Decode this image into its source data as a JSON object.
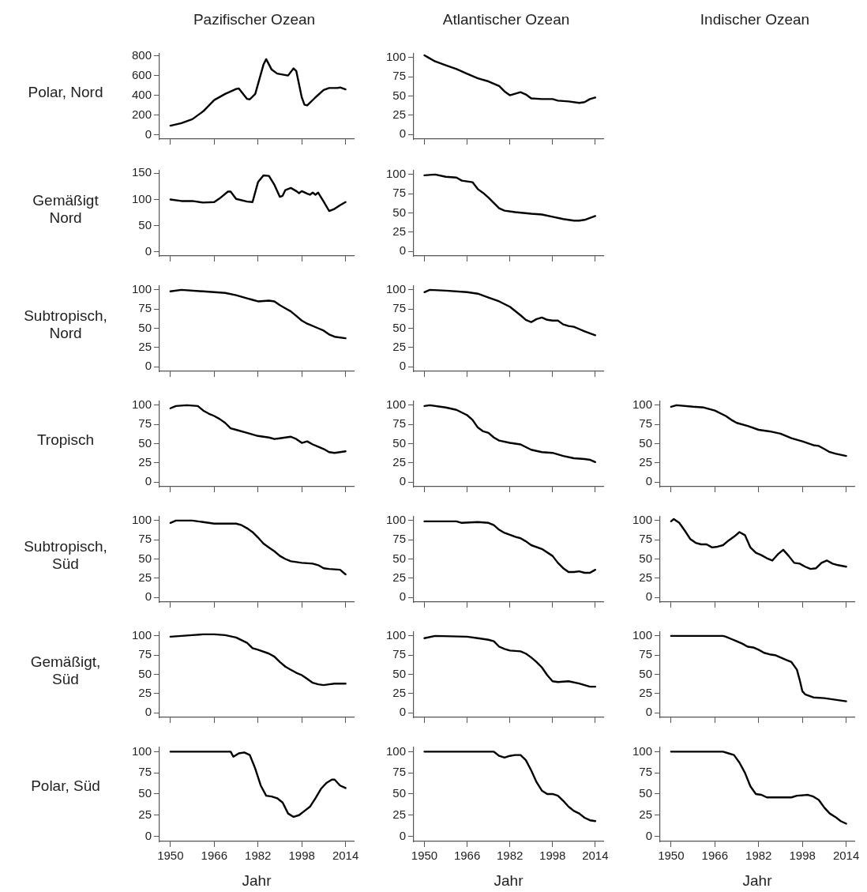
{
  "chart_data": [
    {
      "type": "line",
      "title": "Pazifischer Ozean",
      "ylabel": "Polar, Nord",
      "x": [
        1950,
        1954,
        1958,
        1962,
        1966,
        1970,
        1974,
        1975,
        1978,
        1979,
        1981,
        1984,
        1985,
        1987,
        1989,
        1993,
        1995,
        1996,
        1998,
        1999,
        2000,
        2003,
        2006,
        2008,
        2011,
        2012,
        2014
      ],
      "values": [
        95,
        120,
        160,
        240,
        353,
        415,
        465,
        470,
        365,
        360,
        415,
        710,
        765,
        660,
        620,
        600,
        672,
        645,
        380,
        305,
        300,
        380,
        455,
        475,
        475,
        480,
        460
      ],
      "color": "#000000",
      "xlim": [
        1946,
        2017
      ],
      "xticks": [
        1950,
        1966,
        1982,
        1998,
        2014
      ],
      "ylim": [
        -40,
        820
      ],
      "yticks": [
        0,
        200,
        400,
        600,
        800
      ],
      "grid": false,
      "marker": "none",
      "line_style": "solid",
      "tick_labels": "y"
    },
    {
      "type": "line",
      "title": "Atlantischer Ozean",
      "x": [
        1950,
        1952,
        1954,
        1958,
        1962,
        1966,
        1970,
        1974,
        1978,
        1980,
        1982,
        1984,
        1986,
        1988,
        1990,
        1994,
        1998,
        2000,
        2004,
        2008,
        2010,
        2012,
        2014
      ],
      "values": [
        103,
        99,
        95,
        90,
        85,
        79,
        73,
        69,
        63,
        56,
        51,
        53,
        55,
        52,
        47,
        46,
        46,
        44,
        43,
        41,
        42,
        46,
        48
      ],
      "color": "#000000",
      "xlim": [
        1946,
        2017
      ],
      "xticks": [
        1950,
        1966,
        1982,
        1998,
        2014
      ],
      "ylim": [
        -6,
        105
      ],
      "yticks": [
        0,
        25,
        50,
        75,
        100
      ],
      "grid": false,
      "marker": "none",
      "line_style": "solid",
      "tick_labels": "y"
    },
    {
      "type": "line",
      "ylabel": "Gemäßigt Nord",
      "x": [
        1950,
        1954,
        1958,
        1962,
        1966,
        1968,
        1971,
        1972,
        1974,
        1978,
        1980,
        1982,
        1984,
        1986,
        1988,
        1990,
        1991,
        1992,
        1994,
        1996,
        1997,
        1998,
        2000,
        2001,
        2002,
        2003,
        2004,
        2006,
        2008,
        2010,
        2012,
        2014
      ],
      "values": [
        100,
        97,
        97,
        94,
        95,
        102,
        115,
        115,
        101,
        96,
        95,
        133,
        146,
        145,
        128,
        105,
        107,
        118,
        122,
        116,
        112,
        116,
        111,
        109,
        113,
        109,
        113,
        96,
        78,
        82,
        89,
        95
      ],
      "color": "#000000",
      "xlim": [
        1946,
        2017
      ],
      "xticks": [
        1950,
        1966,
        1982,
        1998,
        2014
      ],
      "ylim": [
        -8,
        155
      ],
      "yticks": [
        0,
        50,
        100,
        150
      ],
      "grid": false,
      "marker": "none",
      "line_style": "solid",
      "tick_labels": "y"
    },
    {
      "type": "line",
      "x": [
        1950,
        1954,
        1958,
        1962,
        1964,
        1968,
        1970,
        1972,
        1974,
        1976,
        1978,
        1980,
        1984,
        1990,
        1994,
        1998,
        2002,
        2006,
        2008,
        2010,
        2014
      ],
      "values": [
        99,
        100,
        97,
        96,
        92,
        90,
        81,
        76,
        70,
        63,
        56,
        53,
        51,
        49,
        48,
        45,
        42,
        40,
        40,
        41,
        46
      ],
      "color": "#000000",
      "xlim": [
        1946,
        2017
      ],
      "xticks": [
        1950,
        1966,
        1982,
        1998,
        2014
      ],
      "ylim": [
        -6,
        105
      ],
      "yticks": [
        0,
        25,
        50,
        75,
        100
      ],
      "grid": false,
      "marker": "none",
      "line_style": "solid",
      "tick_labels": "y"
    },
    {
      "type": "line",
      "ylabel": "Subtropisch, Nord",
      "x": [
        1950,
        1954,
        1962,
        1966,
        1970,
        1974,
        1978,
        1980,
        1982,
        1986,
        1988,
        1990,
        1992,
        1994,
        1996,
        1998,
        2000,
        2004,
        2006,
        2008,
        2010,
        2014
      ],
      "values": [
        98,
        100,
        98,
        97,
        96,
        93,
        89,
        87,
        85,
        86,
        85,
        80,
        76,
        72,
        66,
        60,
        56,
        50,
        47,
        42,
        39,
        37
      ],
      "color": "#000000",
      "xlim": [
        1946,
        2017
      ],
      "xticks": [
        1950,
        1966,
        1982,
        1998,
        2014
      ],
      "ylim": [
        -6,
        105
      ],
      "yticks": [
        0,
        25,
        50,
        75,
        100
      ],
      "grid": false,
      "marker": "none",
      "line_style": "solid",
      "tick_labels": "y"
    },
    {
      "type": "line",
      "x": [
        1950,
        1952,
        1958,
        1966,
        1970,
        1974,
        1978,
        1982,
        1986,
        1988,
        1990,
        1992,
        1994,
        1996,
        1998,
        2000,
        2002,
        2004,
        2006,
        2008,
        2010,
        2014
      ],
      "values": [
        97,
        100,
        99,
        97,
        95,
        90,
        85,
        78,
        67,
        61,
        58,
        62,
        64,
        61,
        60,
        60,
        55,
        53,
        52,
        49,
        46,
        41
      ],
      "color": "#000000",
      "xlim": [
        1946,
        2017
      ],
      "xticks": [
        1950,
        1966,
        1982,
        1998,
        2014
      ],
      "ylim": [
        -6,
        105
      ],
      "yticks": [
        0,
        25,
        50,
        75,
        100
      ],
      "grid": false,
      "marker": "none",
      "line_style": "solid",
      "tick_labels": "y"
    },
    {
      "type": "line",
      "ylabel": "Tropisch",
      "x": [
        1950,
        1952,
        1956,
        1960,
        1962,
        1964,
        1966,
        1968,
        1970,
        1972,
        1974,
        1978,
        1982,
        1986,
        1988,
        1990,
        1994,
        1996,
        1998,
        2000,
        2002,
        2004,
        2006,
        2008,
        2010,
        2014
      ],
      "values": [
        96,
        99,
        100,
        99,
        93,
        89,
        86,
        82,
        77,
        70,
        68,
        64,
        60,
        58,
        56,
        57,
        59,
        56,
        51,
        53,
        49,
        46,
        43,
        39,
        38,
        40
      ],
      "color": "#000000",
      "xlim": [
        1946,
        2017
      ],
      "xticks": [
        1950,
        1966,
        1982,
        1998,
        2014
      ],
      "ylim": [
        -6,
        105
      ],
      "yticks": [
        0,
        25,
        50,
        75,
        100
      ],
      "grid": false,
      "marker": "none",
      "line_style": "solid",
      "tick_labels": "y"
    },
    {
      "type": "line",
      "x": [
        1950,
        1952,
        1958,
        1962,
        1966,
        1968,
        1970,
        1972,
        1974,
        1976,
        1978,
        1982,
        1986,
        1990,
        1994,
        1998,
        2002,
        2006,
        2010,
        2012,
        2014
      ],
      "values": [
        99,
        100,
        97,
        94,
        87,
        81,
        71,
        66,
        64,
        58,
        54,
        51,
        49,
        42,
        39,
        38,
        34,
        31,
        30,
        29,
        26
      ],
      "color": "#000000",
      "xlim": [
        1946,
        2017
      ],
      "xticks": [
        1950,
        1966,
        1982,
        1998,
        2014
      ],
      "ylim": [
        -6,
        105
      ],
      "yticks": [
        0,
        25,
        50,
        75,
        100
      ],
      "grid": false,
      "marker": "none",
      "line_style": "solid",
      "tick_labels": "y"
    },
    {
      "type": "line",
      "title": "Indischer Ozean",
      "x": [
        1950,
        1952,
        1958,
        1962,
        1966,
        1970,
        1972,
        1974,
        1978,
        1982,
        1986,
        1990,
        1994,
        1998,
        2002,
        2004,
        2006,
        2008,
        2010,
        2014
      ],
      "values": [
        98,
        100,
        98,
        97,
        93,
        86,
        81,
        77,
        73,
        68,
        66,
        63,
        57,
        53,
        48,
        47,
        43,
        39,
        37,
        34
      ],
      "color": "#000000",
      "xlim": [
        1946,
        2017
      ],
      "xticks": [
        1950,
        1966,
        1982,
        1998,
        2014
      ],
      "ylim": [
        -6,
        105
      ],
      "yticks": [
        0,
        25,
        50,
        75,
        100
      ],
      "grid": false,
      "marker": "none",
      "line_style": "solid",
      "tick_labels": "y"
    },
    {
      "type": "line",
      "ylabel": "Subtropisch, Süd",
      "x": [
        1950,
        1952,
        1958,
        1962,
        1966,
        1970,
        1974,
        1976,
        1978,
        1980,
        1982,
        1984,
        1986,
        1988,
        1990,
        1992,
        1994,
        1998,
        2002,
        2004,
        2006,
        2008,
        2012,
        2014
      ],
      "values": [
        97,
        100,
        100,
        98,
        96,
        96,
        96,
        94,
        90,
        85,
        78,
        70,
        65,
        60,
        54,
        50,
        47,
        45,
        44,
        42,
        38,
        37,
        36,
        30
      ],
      "color": "#000000",
      "xlim": [
        1946,
        2017
      ],
      "xticks": [
        1950,
        1966,
        1982,
        1998,
        2014
      ],
      "ylim": [
        -6,
        105
      ],
      "yticks": [
        0,
        25,
        50,
        75,
        100
      ],
      "grid": false,
      "marker": "none",
      "line_style": "solid",
      "tick_labels": "y"
    },
    {
      "type": "line",
      "x": [
        1950,
        1958,
        1962,
        1964,
        1970,
        1974,
        1976,
        1978,
        1980,
        1984,
        1986,
        1988,
        1990,
        1994,
        1998,
        2000,
        2002,
        2004,
        2006,
        2008,
        2010,
        2012,
        2014
      ],
      "values": [
        99,
        99,
        99,
        97,
        98,
        97,
        94,
        88,
        84,
        79,
        77,
        73,
        68,
        63,
        54,
        45,
        38,
        33,
        33,
        34,
        32,
        32,
        36
      ],
      "color": "#000000",
      "xlim": [
        1946,
        2017
      ],
      "xticks": [
        1950,
        1966,
        1982,
        1998,
        2014
      ],
      "ylim": [
        -6,
        105
      ],
      "yticks": [
        0,
        25,
        50,
        75,
        100
      ],
      "grid": false,
      "marker": "none",
      "line_style": "solid",
      "tick_labels": "y"
    },
    {
      "type": "line",
      "x": [
        1950,
        1951,
        1953,
        1955,
        1957,
        1959,
        1961,
        1963,
        1965,
        1967,
        1969,
        1971,
        1973,
        1975,
        1977,
        1979,
        1981,
        1983,
        1985,
        1987,
        1989,
        1991,
        1993,
        1995,
        1997,
        1999,
        2001,
        2003,
        2005,
        2007,
        2009,
        2011,
        2014
      ],
      "values": [
        99,
        102,
        97,
        87,
        76,
        71,
        69,
        69,
        65,
        66,
        68,
        74,
        79,
        85,
        81,
        65,
        58,
        55,
        51,
        48,
        56,
        62,
        54,
        45,
        44,
        40,
        37,
        38,
        45,
        48,
        44,
        42,
        40
      ],
      "color": "#000000",
      "xlim": [
        1946,
        2017
      ],
      "xticks": [
        1950,
        1966,
        1982,
        1998,
        2014
      ],
      "ylim": [
        -6,
        105
      ],
      "yticks": [
        0,
        25,
        50,
        75,
        100
      ],
      "grid": false,
      "marker": "none",
      "line_style": "solid",
      "tick_labels": "y"
    },
    {
      "type": "line",
      "ylabel": "Gemäßigt, Süd",
      "x": [
        1950,
        1954,
        1958,
        1962,
        1966,
        1970,
        1974,
        1978,
        1980,
        1982,
        1986,
        1988,
        1990,
        1992,
        1994,
        1996,
        1998,
        2000,
        2002,
        2004,
        2006,
        2008,
        2010,
        2014
      ],
      "values": [
        99,
        100,
        101,
        102,
        102,
        101,
        98,
        91,
        84,
        82,
        77,
        73,
        66,
        60,
        56,
        52,
        49,
        44,
        39,
        37,
        36,
        37,
        38,
        38
      ],
      "color": "#000000",
      "xlim": [
        1946,
        2017
      ],
      "xticks": [
        1950,
        1966,
        1982,
        1998,
        2014
      ],
      "ylim": [
        -6,
        105
      ],
      "yticks": [
        0,
        25,
        50,
        75,
        100
      ],
      "grid": false,
      "marker": "none",
      "line_style": "solid",
      "tick_labels": "y"
    },
    {
      "type": "line",
      "x": [
        1950,
        1954,
        1966,
        1970,
        1974,
        1976,
        1978,
        1980,
        1982,
        1986,
        1988,
        1990,
        1992,
        1994,
        1996,
        1998,
        2000,
        2004,
        2008,
        2012,
        2014
      ],
      "values": [
        97,
        100,
        99,
        97,
        95,
        93,
        86,
        83,
        81,
        80,
        77,
        72,
        66,
        59,
        49,
        41,
        40,
        41,
        38,
        34,
        34
      ],
      "color": "#000000",
      "xlim": [
        1946,
        2017
      ],
      "xticks": [
        1950,
        1966,
        1982,
        1998,
        2014
      ],
      "ylim": [
        -6,
        105
      ],
      "yticks": [
        0,
        25,
        50,
        75,
        100
      ],
      "grid": false,
      "marker": "none",
      "line_style": "solid",
      "tick_labels": "y"
    },
    {
      "type": "line",
      "x": [
        1950,
        1969,
        1970,
        1972,
        1974,
        1976,
        1978,
        1980,
        1982,
        1984,
        1986,
        1988,
        1990,
        1992,
        1994,
        1996,
        1997,
        1998,
        1999,
        2002,
        2006,
        2010,
        2014
      ],
      "values": [
        100,
        100,
        99,
        96,
        93,
        90,
        86,
        85,
        82,
        78,
        76,
        75,
        72,
        69,
        66,
        56,
        43,
        28,
        24,
        20,
        19,
        17,
        15
      ],
      "color": "#000000",
      "xlim": [
        1946,
        2017
      ],
      "xticks": [
        1950,
        1966,
        1982,
        1998,
        2014
      ],
      "ylim": [
        -6,
        105
      ],
      "yticks": [
        0,
        25,
        50,
        75,
        100
      ],
      "grid": false,
      "marker": "none",
      "line_style": "solid",
      "tick_labels": "y"
    },
    {
      "type": "line",
      "ylabel": "Polar, Süd",
      "xlabel": "Jahr",
      "x": [
        1950,
        1972,
        1973,
        1975,
        1977,
        1979,
        1981,
        1983,
        1985,
        1987,
        1989,
        1991,
        1993,
        1995,
        1997,
        1999,
        2001,
        2003,
        2005,
        2007,
        2009,
        2010,
        2012,
        2014
      ],
      "values": [
        100,
        100,
        94,
        98,
        99,
        96,
        80,
        60,
        48,
        47,
        45,
        40,
        27,
        23,
        25,
        30,
        35,
        45,
        56,
        63,
        67,
        67,
        60,
        57
      ],
      "color": "#000000",
      "xlim": [
        1946,
        2017
      ],
      "xticks": [
        1950,
        1966,
        1982,
        1998,
        2014
      ],
      "ylim": [
        -6,
        105
      ],
      "yticks": [
        0,
        25,
        50,
        75,
        100
      ],
      "grid": false,
      "marker": "none",
      "line_style": "solid"
    },
    {
      "type": "line",
      "xlabel": "Jahr",
      "x": [
        1950,
        1976,
        1978,
        1980,
        1982,
        1984,
        1986,
        1988,
        1990,
        1992,
        1994,
        1996,
        1998,
        2000,
        2002,
        2004,
        2006,
        2008,
        2010,
        2012,
        2014
      ],
      "values": [
        100,
        100,
        95,
        93,
        95,
        96,
        96,
        90,
        78,
        64,
        54,
        50,
        50,
        48,
        42,
        35,
        30,
        27,
        22,
        19,
        18
      ],
      "color": "#000000",
      "xlim": [
        1946,
        2017
      ],
      "xticks": [
        1950,
        1966,
        1982,
        1998,
        2014
      ],
      "ylim": [
        -6,
        105
      ],
      "yticks": [
        0,
        25,
        50,
        75,
        100
      ],
      "grid": false,
      "marker": "none",
      "line_style": "solid"
    },
    {
      "type": "line",
      "xlabel": "Jahr",
      "x": [
        1950,
        1969,
        1971,
        1973,
        1975,
        1977,
        1979,
        1981,
        1983,
        1985,
        1990,
        1994,
        1996,
        2000,
        2002,
        2004,
        2006,
        2008,
        2010,
        2012,
        2014
      ],
      "values": [
        100,
        100,
        98,
        96,
        87,
        75,
        59,
        50,
        49,
        46,
        46,
        46,
        48,
        49,
        47,
        43,
        34,
        27,
        23,
        18,
        15
      ],
      "color": "#000000",
      "xlim": [
        1946,
        2017
      ],
      "xticks": [
        1950,
        1966,
        1982,
        1998,
        2014
      ],
      "ylim": [
        -6,
        105
      ],
      "yticks": [
        0,
        25,
        50,
        75,
        100
      ],
      "grid": false,
      "marker": "none",
      "line_style": "solid"
    }
  ]
}
